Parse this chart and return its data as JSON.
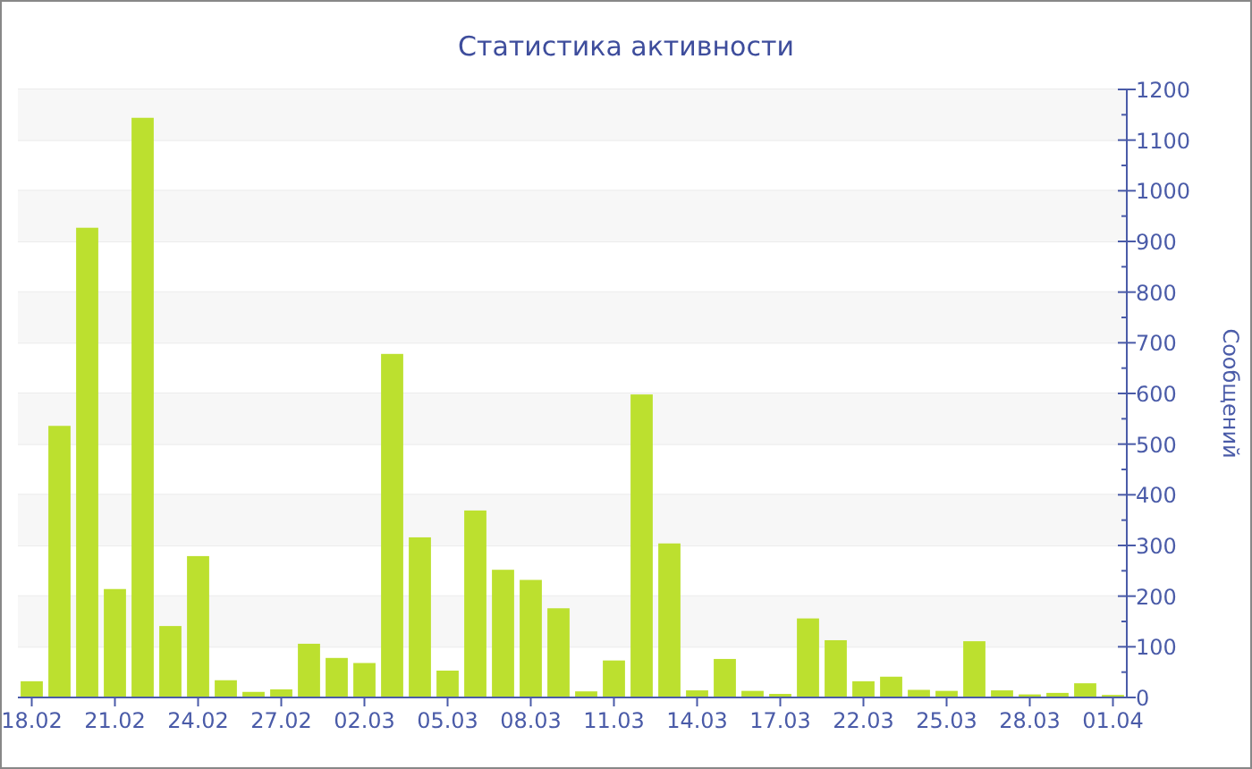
{
  "chart_data": {
    "type": "bar",
    "title": "Статистика активности",
    "ylabel": "Сообщений",
    "categories": [
      "18.02",
      null,
      null,
      "21.02",
      null,
      null,
      "24.02",
      null,
      null,
      "27.02",
      null,
      null,
      "02.03",
      null,
      null,
      "05.03",
      null,
      null,
      "08.03",
      null,
      null,
      "11.03",
      null,
      null,
      "14.03",
      null,
      null,
      "17.03",
      null,
      null,
      "22.03",
      null,
      null,
      "25.03",
      null,
      null,
      "28.03",
      null,
      null,
      "01.04"
    ],
    "values": [
      32,
      536,
      927,
      214,
      1144,
      141,
      279,
      34,
      11,
      16,
      106,
      78,
      68,
      678,
      316,
      53,
      369,
      252,
      232,
      176,
      12,
      73,
      598,
      304,
      14,
      76,
      13,
      7,
      156,
      113,
      32,
      41,
      15,
      13,
      111,
      14,
      6,
      9,
      28,
      5
    ],
    "color": "#bce02f",
    "ylim": [
      0,
      1200
    ],
    "yticks": [
      0,
      100,
      200,
      300,
      400,
      500,
      600,
      700,
      800,
      900,
      1000,
      1100,
      1200
    ],
    "grid": "y"
  }
}
